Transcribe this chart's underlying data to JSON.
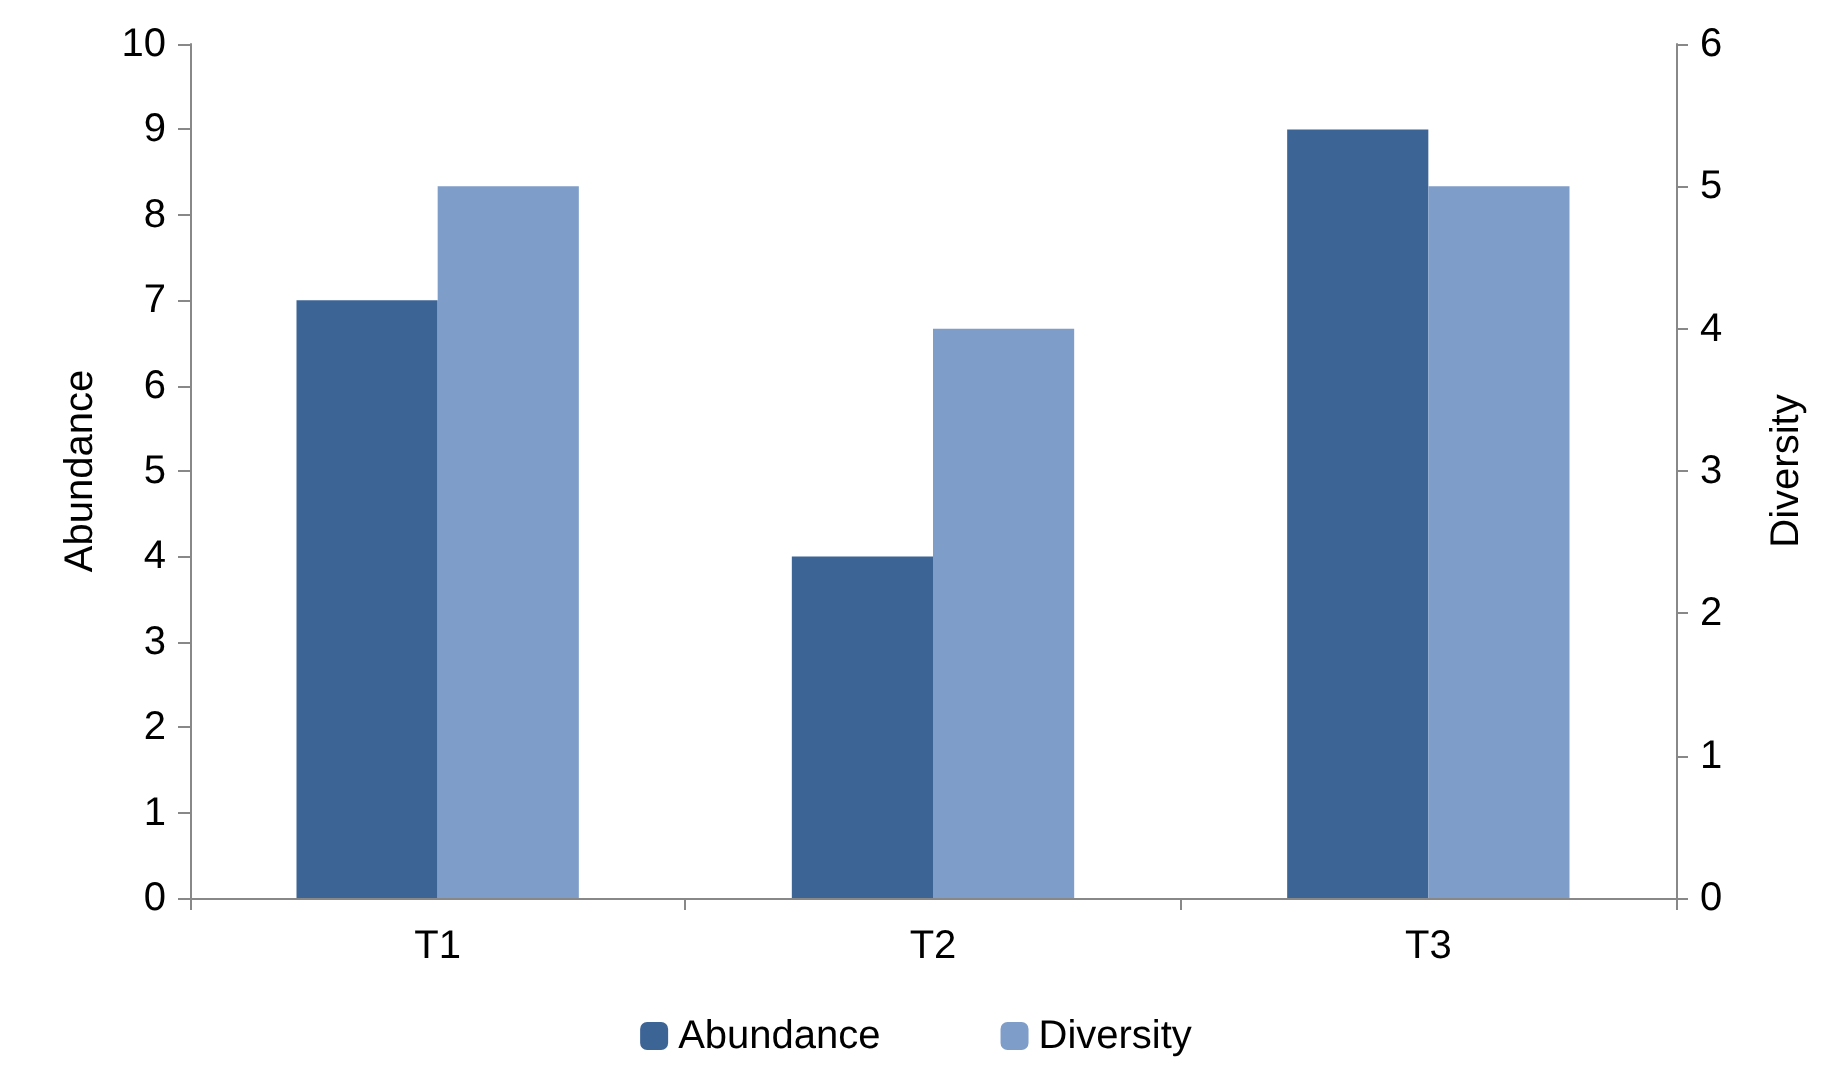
{
  "chart_data": {
    "type": "bar",
    "ylabel": "Abundance",
    "y2label": "Diversity",
    "categories": [
      "T1",
      "T2",
      "T3"
    ],
    "series": [
      {
        "name": "Abundance",
        "color": "#3c6596",
        "values": [
          7,
          4,
          9
        ]
      },
      {
        "name": "Diversity",
        "color": "#7f9dc9",
        "values": [
          5,
          4,
          5
        ],
        "axis": "y2"
      }
    ],
    "ylim": [
      0,
      10
    ],
    "yticks": [
      0,
      1,
      2,
      3,
      4,
      5,
      6,
      7,
      8,
      9,
      10
    ],
    "y2lim": [
      0,
      6
    ],
    "y2ticks": [
      0,
      1,
      2,
      3,
      4,
      5,
      6
    ],
    "grid": false,
    "legend": "bottom"
  }
}
